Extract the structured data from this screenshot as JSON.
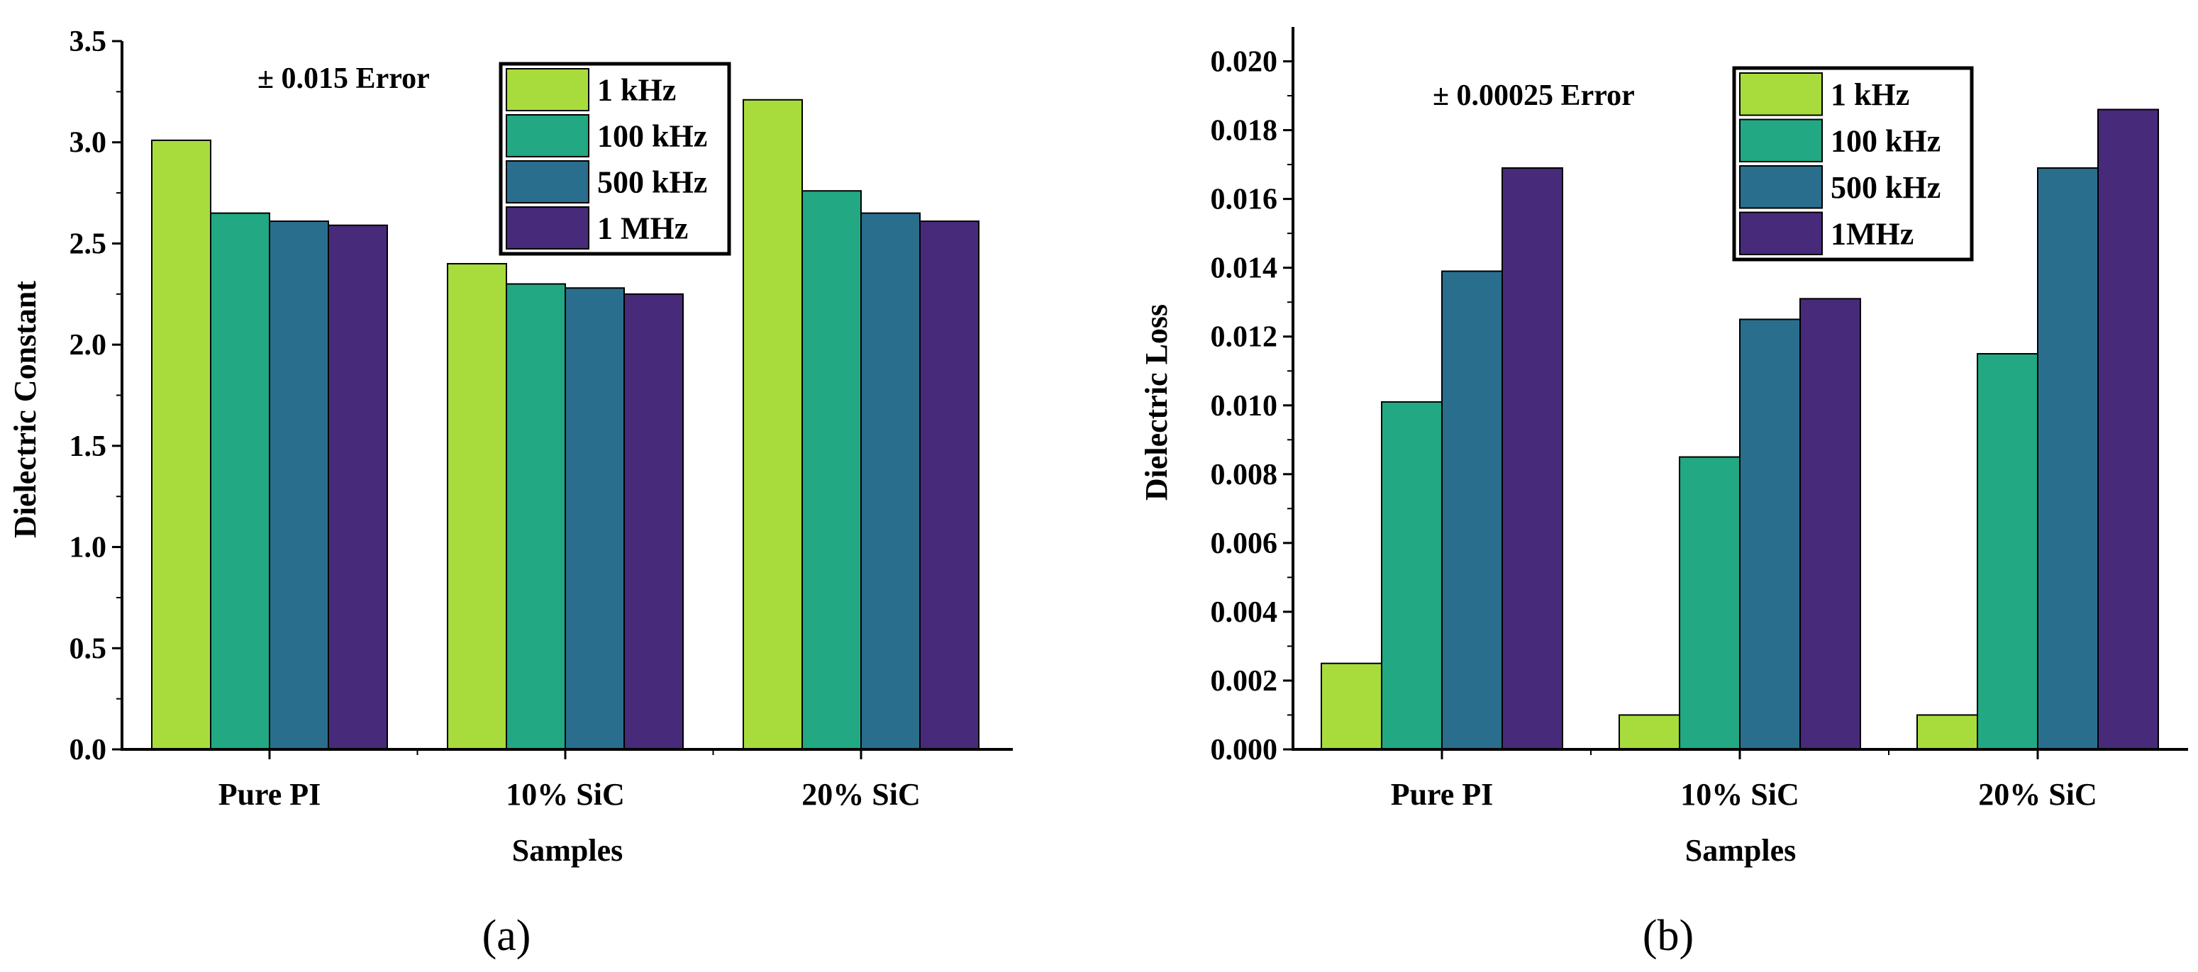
{
  "chart_data": [
    {
      "panel_label": "(a)",
      "type": "bar",
      "title": "",
      "xlabel": "Samples",
      "ylabel": "Dielectric Constant",
      "annotation": "± 0.015 Error",
      "ylim": [
        0,
        3.5
      ],
      "yticks": [
        "0.0",
        "0.5",
        "1.0",
        "1.5",
        "2.0",
        "2.5",
        "3.0",
        "3.5"
      ],
      "categories": [
        "Pure PI",
        "10% SiC",
        "20% SiC"
      ],
      "series": [
        {
          "name": "1 kHz",
          "color": "#a8dc3c",
          "values": [
            3.01,
            2.4,
            3.21
          ]
        },
        {
          "name": "100 kHz",
          "color": "#22a882",
          "values": [
            2.65,
            2.3,
            2.76
          ]
        },
        {
          "name": "500 kHz",
          "color": "#2a6e8e",
          "values": [
            2.61,
            2.28,
            2.65
          ]
        },
        {
          "name": "1 MHz",
          "color": "#472a7a",
          "values": [
            2.59,
            2.25,
            2.61
          ]
        }
      ]
    },
    {
      "panel_label": "(b)",
      "type": "bar",
      "title": "",
      "xlabel": "Samples",
      "ylabel": "Dielectric Loss",
      "annotation": "± 0.00025 Error",
      "ylim": [
        0,
        0.021
      ],
      "yticks": [
        "0.000",
        "0.002",
        "0.004",
        "0.006",
        "0.008",
        "0.010",
        "0.012",
        "0.014",
        "0.016",
        "0.018",
        "0.020"
      ],
      "categories": [
        "Pure PI",
        "10% SiC",
        "20% SiC"
      ],
      "series": [
        {
          "name": "1 kHz",
          "color": "#a8dc3c",
          "values": [
            0.0025,
            0.001,
            0.001
          ]
        },
        {
          "name": "100 kHz",
          "color": "#22a882",
          "values": [
            0.0101,
            0.0085,
            0.0115
          ]
        },
        {
          "name": "500 kHz",
          "color": "#2a6e8e",
          "values": [
            0.0139,
            0.0125,
            0.0169
          ]
        },
        {
          "name": "1MHz",
          "color": "#472a7a",
          "values": [
            0.0169,
            0.0131,
            0.0186
          ]
        }
      ]
    }
  ]
}
